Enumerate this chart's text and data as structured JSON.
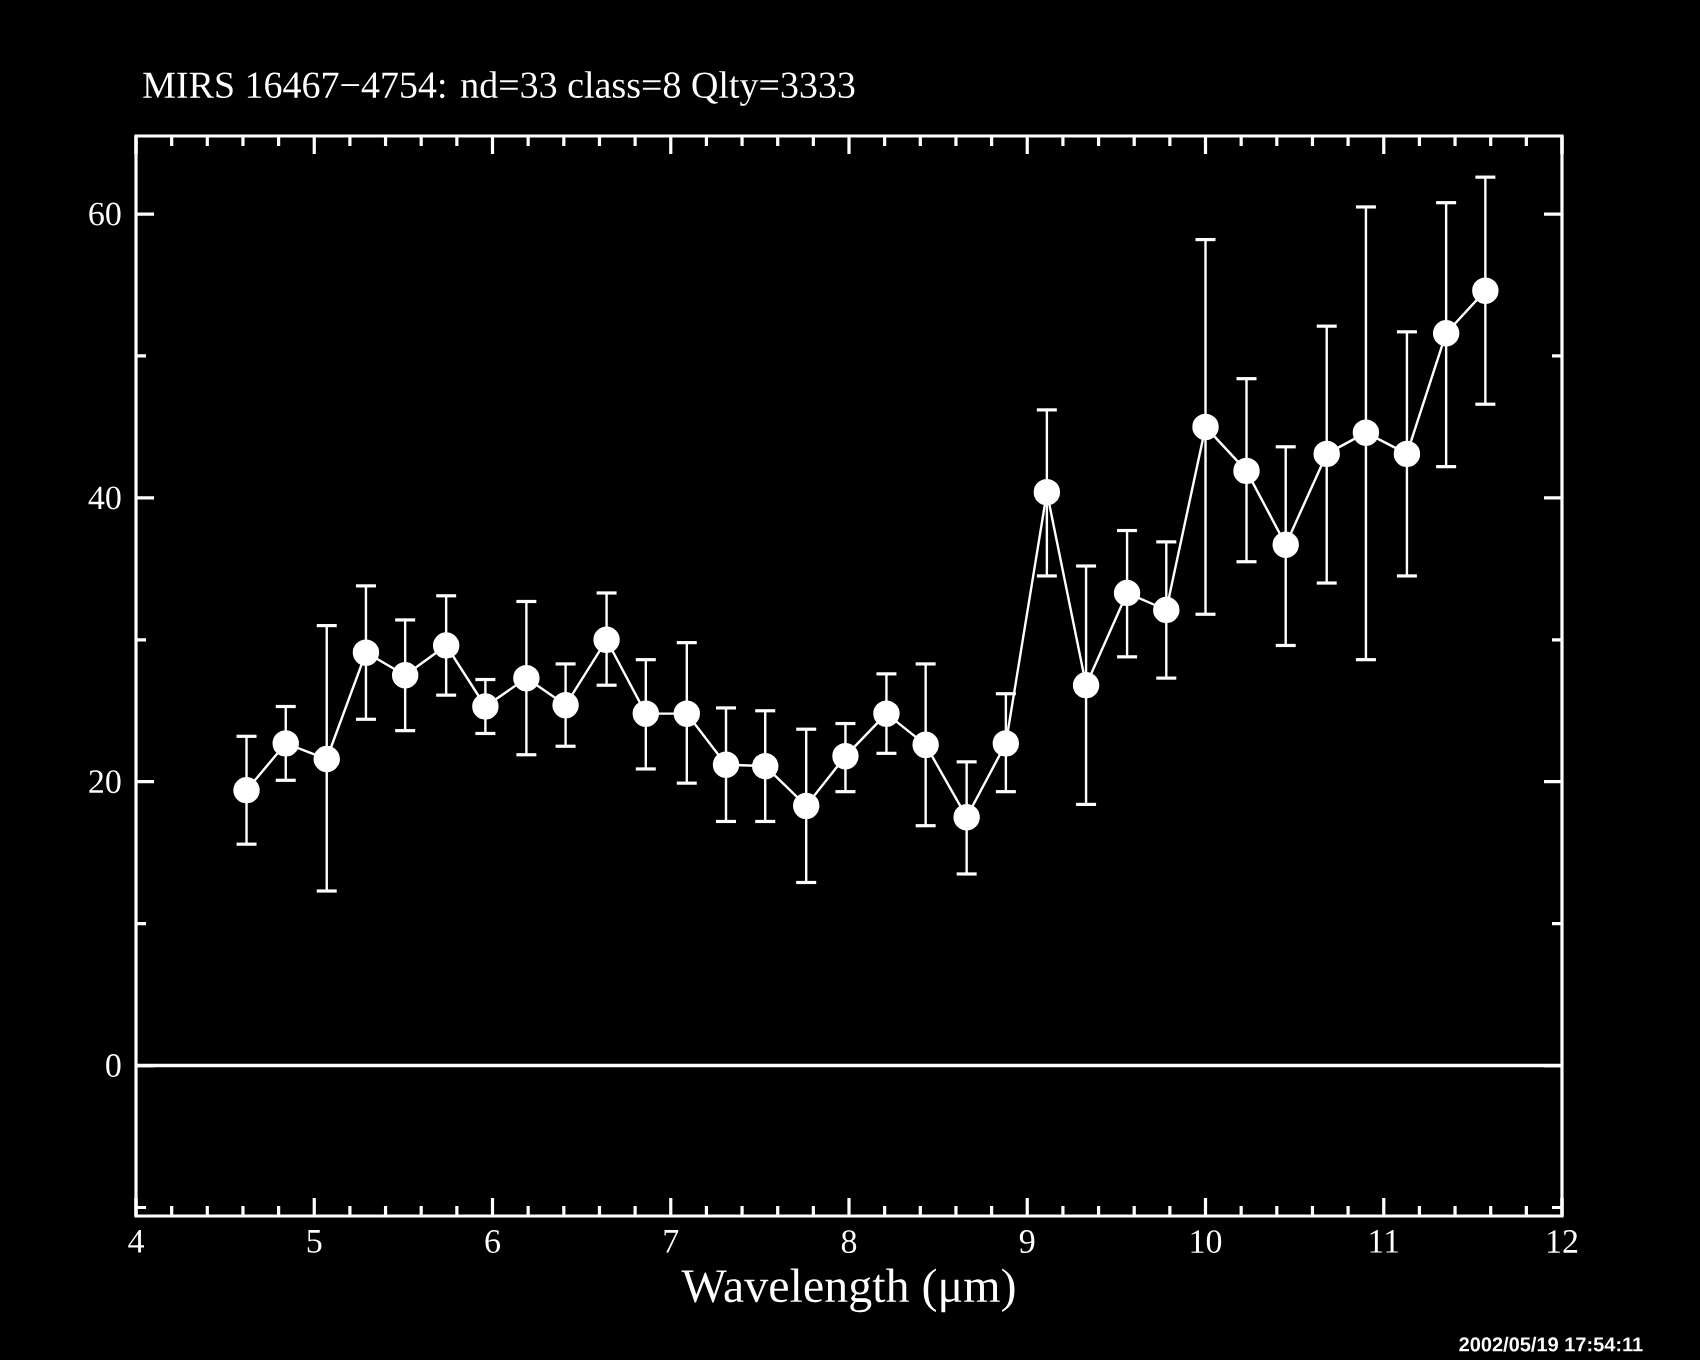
{
  "chart_data": {
    "type": "line",
    "title": "MIRS 16467−4754:    nd=33    class=8    Qlty=3333",
    "xlabel": "Wavelength (μm)",
    "annotations": [
      "2002/05/19 17:54:11"
    ],
    "x": [
      4.62,
      4.84,
      5.07,
      5.29,
      5.51,
      5.74,
      5.96,
      6.19,
      6.41,
      6.64,
      6.86,
      7.09,
      7.31,
      7.53,
      7.76,
      7.98,
      8.21,
      8.43,
      8.66,
      8.88,
      9.11,
      9.33,
      9.56,
      9.78,
      10.0,
      10.23,
      10.45,
      10.68,
      10.9,
      11.13,
      11.35,
      11.57
    ],
    "series": [
      {
        "color": "#ffffff",
        "values": [
          19.4,
          22.7,
          21.6,
          29.1,
          27.5,
          29.6,
          25.3,
          27.3,
          25.4,
          30.0,
          24.8,
          24.8,
          21.2,
          21.1,
          18.3,
          21.8,
          24.8,
          22.6,
          17.5,
          22.7,
          40.4,
          26.8,
          33.3,
          32.1,
          45.0,
          41.9,
          36.7,
          43.1,
          44.6,
          43.1,
          51.6,
          54.6
        ],
        "errors": [
          [
            15.6,
            23.2
          ],
          [
            20.1,
            25.3
          ],
          [
            12.3,
            31.0
          ],
          [
            24.4,
            33.8
          ],
          [
            23.6,
            31.4
          ],
          [
            26.1,
            33.1
          ],
          [
            23.4,
            27.2
          ],
          [
            21.9,
            32.7
          ],
          [
            22.5,
            28.3
          ],
          [
            26.8,
            33.3
          ],
          [
            20.9,
            28.6
          ],
          [
            19.9,
            29.8
          ],
          [
            17.2,
            25.2
          ],
          [
            17.2,
            25.0
          ],
          [
            12.9,
            23.7
          ],
          [
            19.3,
            24.1
          ],
          [
            22.0,
            27.6
          ],
          [
            16.9,
            28.3
          ],
          [
            13.5,
            21.4
          ],
          [
            19.3,
            26.2
          ],
          [
            34.5,
            46.2
          ],
          [
            18.4,
            35.2
          ],
          [
            28.8,
            37.7
          ],
          [
            27.3,
            36.9
          ],
          [
            31.8,
            58.2
          ],
          [
            35.5,
            48.4
          ],
          [
            29.6,
            43.6
          ],
          [
            34.0,
            52.1
          ],
          [
            28.6,
            60.5
          ],
          [
            34.5,
            51.7
          ],
          [
            42.2,
            60.8
          ],
          [
            46.6,
            62.6
          ]
        ]
      }
    ],
    "marker": "circle",
    "line_style": "solid",
    "xlim": [
      4,
      12
    ],
    "ylim": [
      -10.6,
      65.5
    ],
    "xticks": [
      4,
      {
        "value": 4.2,
        "label": null
      },
      {
        "value": 4.4,
        "label": null
      },
      {
        "value": 4.6,
        "label": null
      },
      {
        "value": 4.8,
        "label": null
      },
      5,
      {
        "value": 5.2,
        "label": null
      },
      {
        "value": 5.4,
        "label": null
      },
      {
        "value": 5.6,
        "label": null
      },
      {
        "value": 5.8,
        "label": null
      },
      6,
      {
        "value": 6.2,
        "label": null
      },
      {
        "value": 6.4,
        "label": null
      },
      {
        "value": 6.6,
        "label": null
      },
      {
        "value": 6.8,
        "label": null
      },
      7,
      {
        "value": 7.2,
        "label": null
      },
      {
        "value": 7.4,
        "label": null
      },
      {
        "value": 7.6,
        "label": null
      },
      {
        "value": 7.8,
        "label": null
      },
      8,
      {
        "value": 8.2,
        "label": null
      },
      {
        "value": 8.4,
        "label": null
      },
      {
        "value": 8.6,
        "label": null
      },
      {
        "value": 8.8,
        "label": null
      },
      9,
      {
        "value": 9.2,
        "label": null
      },
      {
        "value": 9.4,
        "label": null
      },
      {
        "value": 9.6,
        "label": null
      },
      {
        "value": 9.8,
        "label": null
      },
      10,
      {
        "value": 10.2,
        "label": null
      },
      {
        "value": 10.4,
        "label": null
      },
      {
        "value": 10.6,
        "label": null
      },
      {
        "value": 10.8,
        "label": null
      },
      11,
      {
        "value": 11.2,
        "label": null
      },
      {
        "value": 11.4,
        "label": null
      },
      {
        "value": 11.6,
        "label": null
      },
      {
        "value": 11.8,
        "label": null
      },
      12
    ],
    "yticks": [
      {
        "value": -10,
        "label": null
      },
      0,
      {
        "value": 10,
        "label": null
      },
      20,
      {
        "value": 30,
        "label": null
      },
      40,
      {
        "value": 50,
        "label": null
      },
      60
    ],
    "ref_lines": [
      {
        "axis": "y",
        "value": 0,
        "color": "#ffffff",
        "line_style": "solid"
      }
    ]
  }
}
